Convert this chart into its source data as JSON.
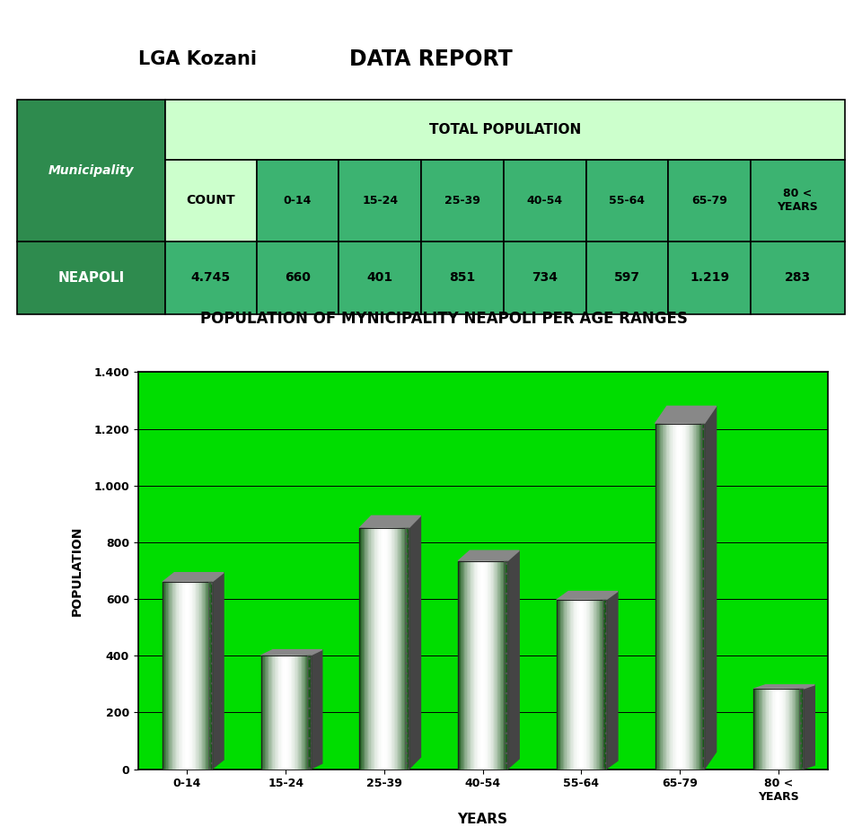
{
  "title": "POPULATION OF MYNICIPALITY NEAPOLI PER AGE RANGES",
  "xlabel": "YEARS",
  "ylabel": "POPULATION",
  "categories": [
    "0-14",
    "15-24",
    "25-39",
    "40-54",
    "55-64",
    "65-79",
    "80 <\nYEARS"
  ],
  "values": [
    660,
    401,
    851,
    734,
    597,
    1219,
    283
  ],
  "ylim": [
    0,
    1400
  ],
  "yticks": [
    0,
    200,
    400,
    600,
    800,
    1000,
    1200,
    1400
  ],
  "ytick_labels": [
    "0",
    "200",
    "400",
    "600",
    "800",
    "1.000",
    "1.200",
    "1.400"
  ],
  "bg_color": "#00dd00",
  "table_dark_green": "#2e8b4e",
  "table_mid_green": "#3cb371",
  "table_light_green": "#ccffcc",
  "table_data": {
    "municipality": "NEAPOLI",
    "count": "4.745",
    "age_values": [
      "660",
      "401",
      "851",
      "734",
      "597",
      "1.219",
      "283"
    ]
  },
  "header_title": "DATA REPORT",
  "lga_label": "LGA Kozani",
  "total_pop_label": "TOTAL POPULATION",
  "count_label": "COUNT",
  "municipality_label": "Municipality",
  "col_headers": [
    "COUNT",
    "0-14",
    "15-24",
    "25-39",
    "40-54",
    "55-64",
    "65-79",
    "80 <\nYEARS"
  ]
}
